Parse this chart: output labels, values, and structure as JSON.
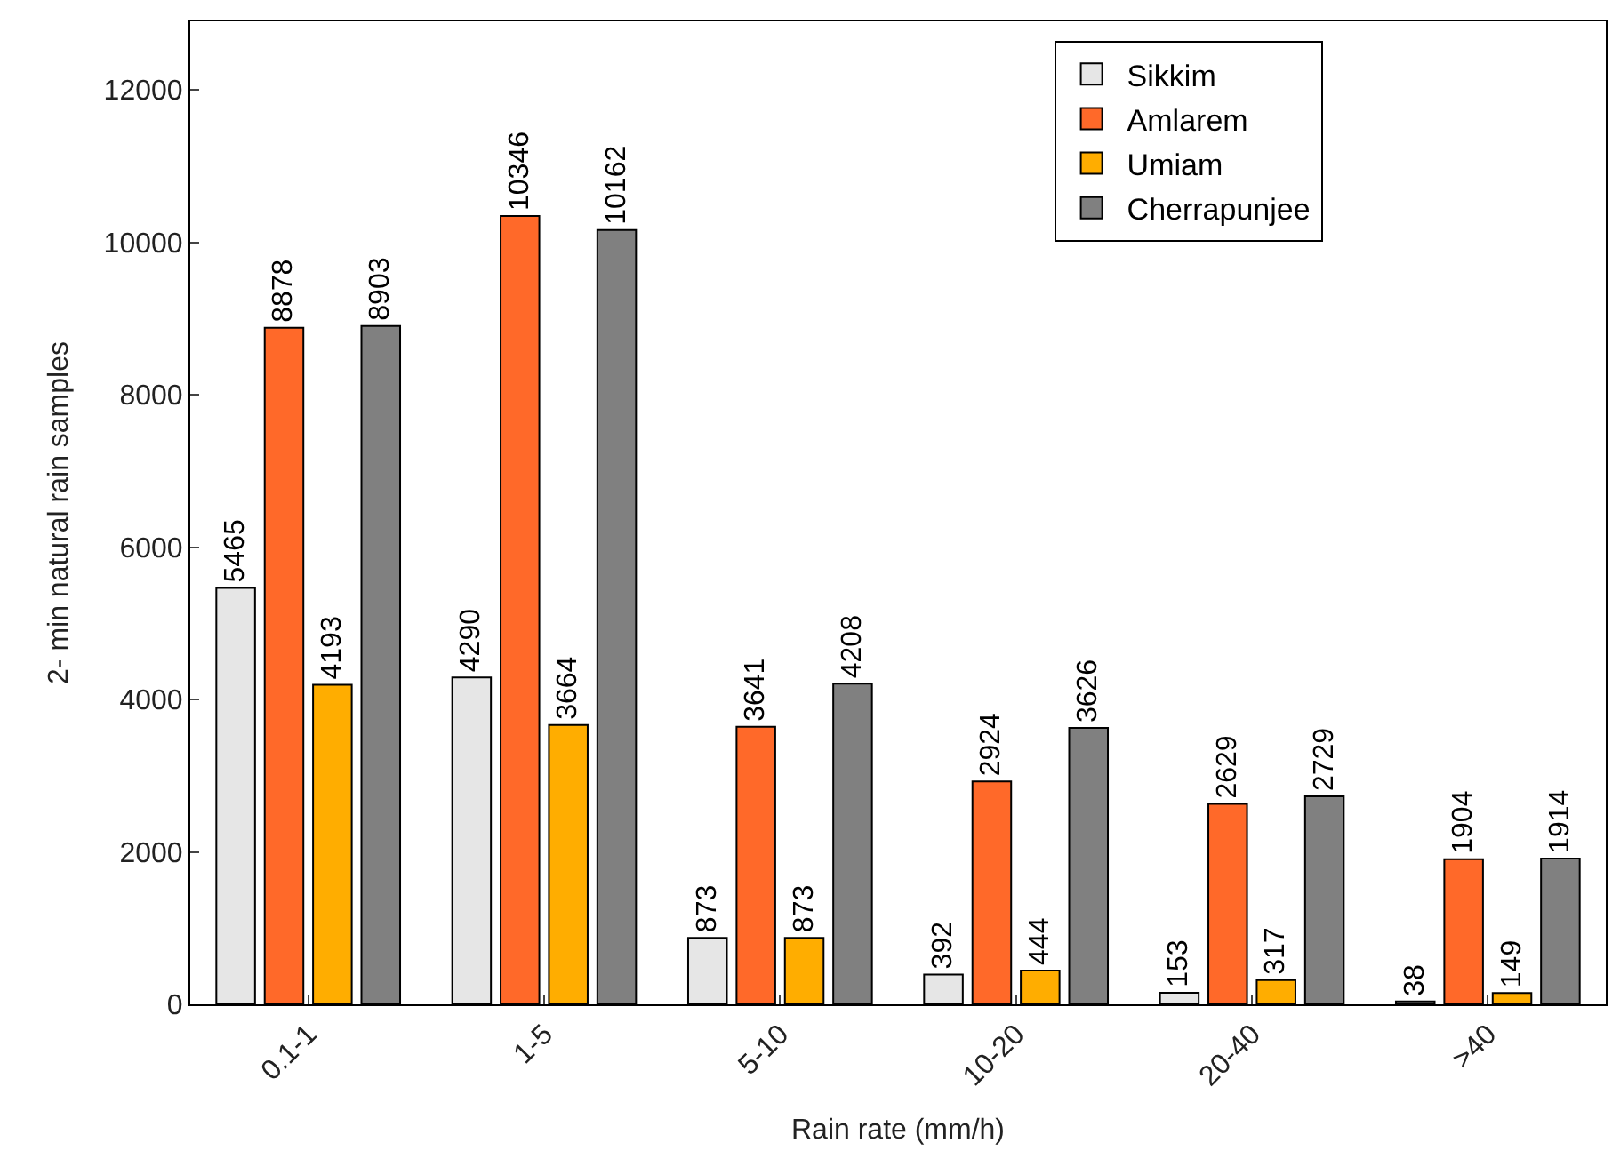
{
  "chart_data": {
    "type": "bar",
    "xlabel": "Rain rate (mm/h)",
    "ylabel": "2- min natural rain samples",
    "categories": [
      "0.1-1",
      "1-5",
      "5-10",
      "10-20",
      "20-40",
      ">40"
    ],
    "series": [
      {
        "name": "Sikkim",
        "color": "#e6e6e6",
        "values": [
          5465,
          4290,
          873,
          392,
          153,
          38
        ]
      },
      {
        "name": "Amlarem",
        "color": "#ff6929",
        "values": [
          8878,
          10346,
          3641,
          2924,
          2629,
          1904
        ]
      },
      {
        "name": "Umiam",
        "color": "#ffad00",
        "values": [
          4193,
          3664,
          873,
          444,
          317,
          149
        ]
      },
      {
        "name": "Cherrapunjee",
        "color": "#808080",
        "values": [
          8903,
          10162,
          4208,
          3626,
          2729,
          1914
        ]
      }
    ],
    "ylim": [
      0,
      12900
    ],
    "yticks": [
      0,
      2000,
      4000,
      6000,
      8000,
      10000,
      12000
    ],
    "data_labels": true,
    "legend": "top right"
  }
}
